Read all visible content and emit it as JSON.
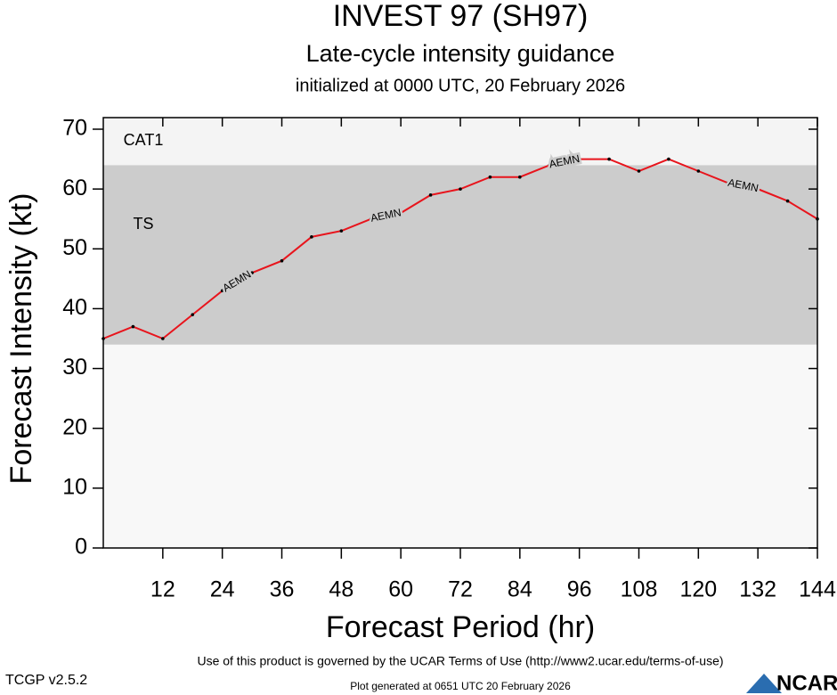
{
  "chart_data": {
    "type": "line",
    "title": "INVEST 97 (SH97)",
    "subtitle": "Late-cycle intensity guidance",
    "initialized": "initialized at 0000 UTC, 20 February 2026",
    "x_label": "Forecast Period (hr)",
    "y_label": "Forecast Intensity (kt)",
    "x": [
      0,
      6,
      12,
      18,
      24,
      30,
      36,
      42,
      48,
      54,
      60,
      66,
      72,
      78,
      84,
      90,
      96,
      102,
      108,
      114,
      120,
      126,
      132,
      138,
      144
    ],
    "series": [
      {
        "name": "AEMN",
        "color": "#e8141c",
        "values": [
          35,
          37,
          35,
          39,
          43,
          46,
          48,
          52,
          53,
          55,
          56,
          59,
          60,
          62,
          62,
          64,
          65,
          65,
          63,
          65,
          63,
          61,
          60,
          58,
          55
        ]
      }
    ],
    "bands": [
      {
        "label": "TS",
        "from": 34,
        "to": 64,
        "color": "#cccccc"
      },
      {
        "label": "CAT1",
        "from": 64,
        "to": 70,
        "color": "#f4f4f4"
      }
    ],
    "xlim": [
      0,
      144
    ],
    "xticks": [
      12,
      24,
      36,
      48,
      60,
      72,
      84,
      96,
      108,
      120,
      132,
      144
    ],
    "ylim": [
      0,
      70
    ],
    "yticks": [
      0,
      10,
      20,
      30,
      40,
      50,
      60,
      70
    ],
    "footer": {
      "terms": "Use of this product is governed by the UCAR Terms of Use (http://www2.ucar.edu/terms-of-use)",
      "version": "TCGP v2.5.2",
      "generated": "Plot generated at 0651 UTC   20 February 2026",
      "logo": "NCAR"
    }
  }
}
